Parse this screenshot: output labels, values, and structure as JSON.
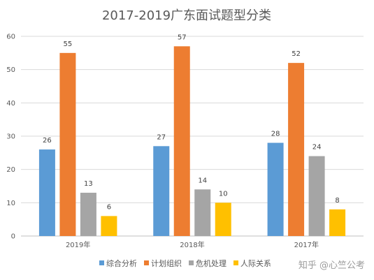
{
  "chart_data": {
    "type": "bar",
    "title": "2017-2019广东面试题型分类",
    "categories": [
      "2019年",
      "2018年",
      "2017年"
    ],
    "series": [
      {
        "name": "综合分析",
        "values": [
          26,
          27,
          28
        ],
        "color": "#5b9bd5"
      },
      {
        "name": "计划组织",
        "values": [
          55,
          57,
          52
        ],
        "color": "#ed7d31"
      },
      {
        "name": "危机处理",
        "values": [
          13,
          14,
          24
        ],
        "color": "#a5a5a5"
      },
      {
        "name": "人际关系",
        "values": [
          6,
          10,
          8
        ],
        "color": "#ffc000"
      }
    ],
    "ylim": [
      0,
      60
    ],
    "yticks": [
      0,
      10,
      20,
      30,
      40,
      50,
      60
    ],
    "grid": true,
    "legend_position": "bottom"
  },
  "watermark": "知乎 @心竺公考"
}
